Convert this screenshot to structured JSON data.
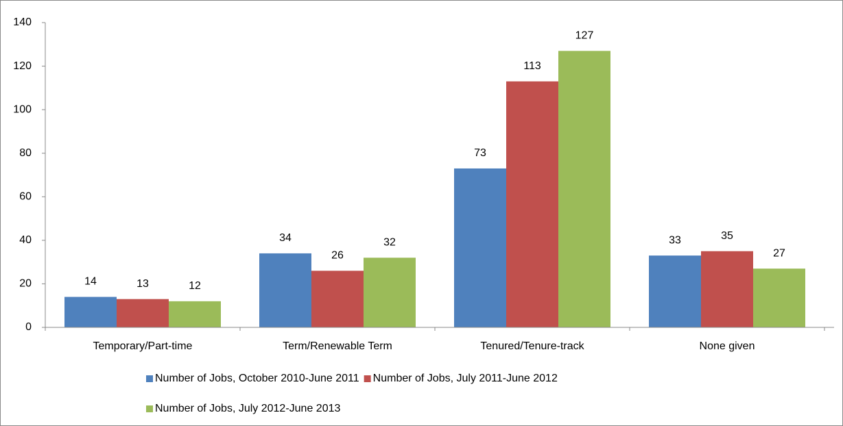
{
  "chart_data": {
    "type": "bar",
    "categories": [
      "Temporary/Part-time",
      "Term/Renewable Term",
      "Tenured/Tenure-track",
      "None given"
    ],
    "series": [
      {
        "name": "Number of Jobs, October 2010-June 2011",
        "color": "#4f81bd",
        "values": [
          14,
          34,
          73,
          33
        ]
      },
      {
        "name": "Number of Jobs, July 2011-June 2012",
        "color": "#c0504d",
        "values": [
          13,
          26,
          113,
          35
        ]
      },
      {
        "name": "Number of Jobs, July 2012-June 2013",
        "color": "#9bbb59",
        "values": [
          12,
          32,
          127,
          27
        ]
      }
    ],
    "ylim": [
      0,
      140
    ],
    "yticks": [
      0,
      20,
      40,
      60,
      80,
      100,
      120,
      140
    ],
    "grid": false,
    "legend": "bottom"
  }
}
